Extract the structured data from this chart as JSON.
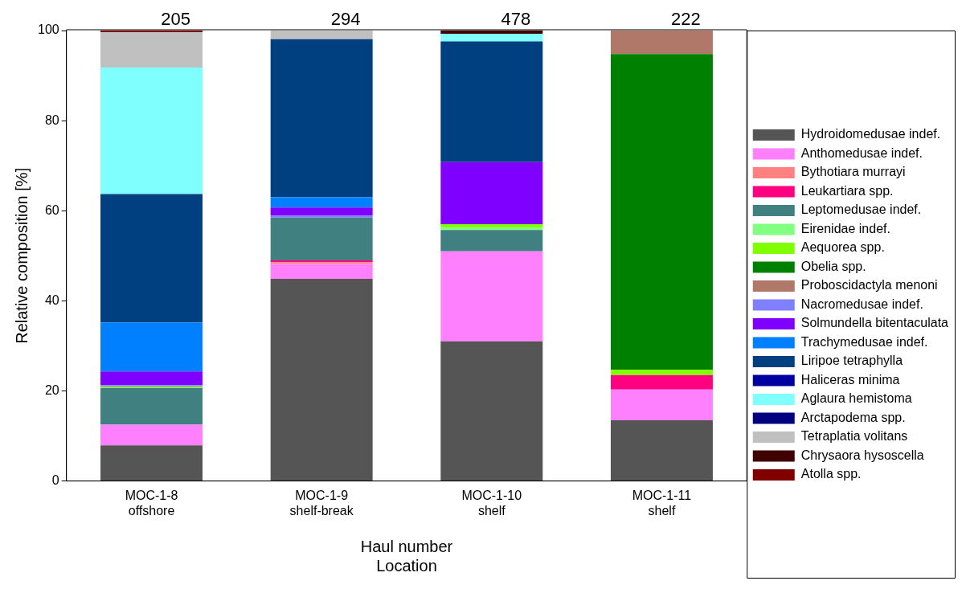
{
  "chart_data": {
    "type": "bar",
    "stacked": true,
    "ylabel": "Relative composition [%]",
    "xlabel": "Haul number\nLocation",
    "categories": [
      "MOC-1-8\noffshore",
      "MOC-1-9\nshelf-break",
      "MOC-1-10\nshelf",
      "MOC-1-11\nshelf"
    ],
    "ylim": [
      0,
      100
    ],
    "yticks": [
      0,
      20,
      40,
      60,
      80,
      100
    ],
    "grid": false,
    "legend": "right",
    "annotations": [
      "205",
      "294",
      "478",
      "222"
    ],
    "series": [
      {
        "name": "Hydroidomedusae indef.",
        "color": "#555555",
        "values": [
          7.9,
          44.9,
          31.0,
          13.5
        ]
      },
      {
        "name": "Anthomedusae indef.",
        "color": "#ff80ff",
        "values": [
          4.6,
          3.3,
          20.0,
          6.8
        ]
      },
      {
        "name": "Bythotiara murrayi",
        "color": "#ff8080",
        "values": [
          0,
          0.4,
          0,
          0
        ]
      },
      {
        "name": "Leukartiara spp.",
        "color": "#ff0080",
        "values": [
          0,
          0.4,
          0,
          3.2
        ]
      },
      {
        "name": "Leptomedusae indef.",
        "color": "#408080",
        "values": [
          8.1,
          9.5,
          4.7,
          0
        ]
      },
      {
        "name": "Eirenidae indef.",
        "color": "#80ff80",
        "values": [
          0,
          0,
          0.5,
          0
        ]
      },
      {
        "name": "Aequorea spp.",
        "color": "#80ff00",
        "values": [
          0.3,
          0,
          0.8,
          1.2
        ]
      },
      {
        "name": "Obelia spp.",
        "color": "#008000",
        "values": [
          0,
          0,
          0,
          70.1
        ]
      },
      {
        "name": "Proboscidactyla menoni",
        "color": "#b07868",
        "values": [
          0,
          0,
          0,
          5.2
        ]
      },
      {
        "name": "Nacromedusae indef.",
        "color": "#8080ff",
        "values": [
          0.4,
          0.4,
          0,
          0
        ]
      },
      {
        "name": "Solmundella bitentaculata",
        "color": "#8000ff",
        "values": [
          3.0,
          1.8,
          13.8,
          0
        ]
      },
      {
        "name": "Trachymedusae indef.",
        "color": "#0080ff",
        "values": [
          10.9,
          2.3,
          0,
          0
        ]
      },
      {
        "name": "Liripoe tetraphylla",
        "color": "#004080",
        "values": [
          28.5,
          35.1,
          26.8,
          0
        ]
      },
      {
        "name": "Haliceras minima",
        "color": "#0000a0",
        "values": [
          0,
          0,
          0,
          0
        ]
      },
      {
        "name": "Aglaura hemistoma",
        "color": "#80ffff",
        "values": [
          28.1,
          0,
          1.7,
          0
        ]
      },
      {
        "name": "Arctapodema spp.",
        "color": "#000080",
        "values": [
          0,
          0,
          0,
          0
        ]
      },
      {
        "name": "Tetraplatia volitans",
        "color": "#c0c0c0",
        "values": [
          7.8,
          1.9,
          0,
          0
        ]
      },
      {
        "name": "Chrysaora hysoscella",
        "color": "#400000",
        "values": [
          0,
          0,
          0.7,
          0
        ]
      },
      {
        "name": "Atolla spp.",
        "color": "#800000",
        "values": [
          0.4,
          0,
          0,
          0
        ]
      }
    ]
  }
}
